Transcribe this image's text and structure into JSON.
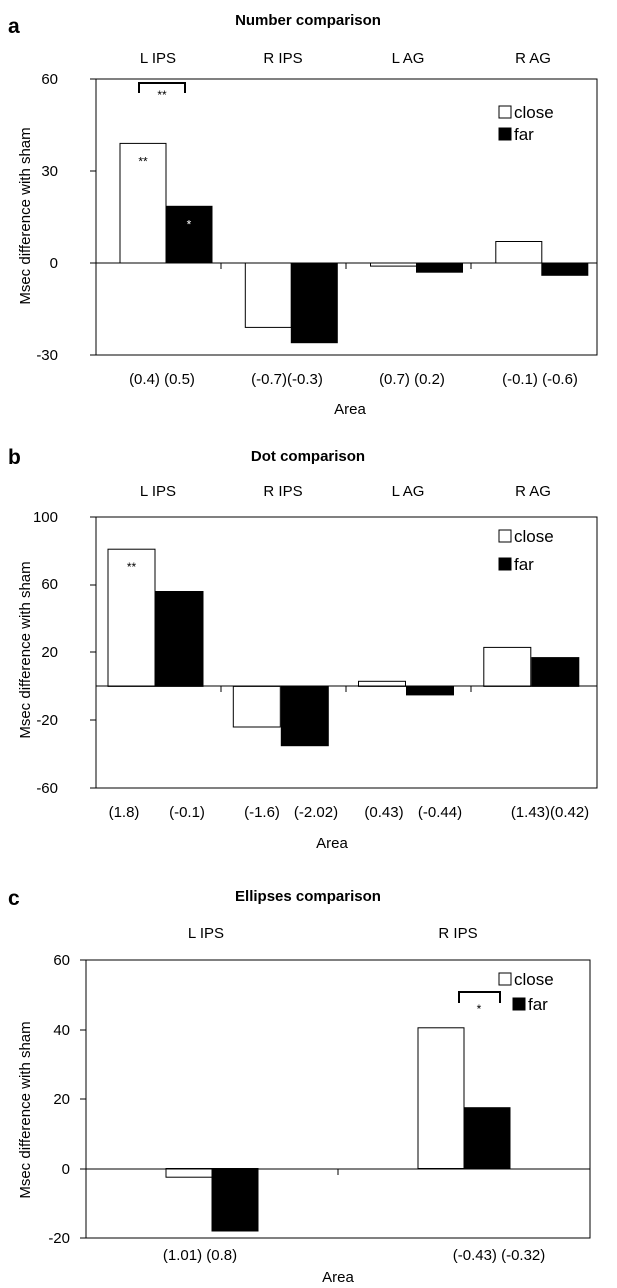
{
  "figure_panels": [
    {
      "letter": "a",
      "title": "Number comparison",
      "ylabel": "Msec difference with sham",
      "xlabel": "Area",
      "yticks": [
        "60",
        "30",
        "0",
        "-30"
      ],
      "legend": [
        "close",
        "far"
      ],
      "annotations": [
        "(0.4) (0.5)",
        "(-0.7)(-0.3)",
        "(0.7)  (0.2)",
        "(-0.1) (-0.6)"
      ],
      "bracket_label": "**"
    },
    {
      "letter": "b",
      "title": "Dot comparison",
      "ylabel": "Msec difference with sham",
      "xlabel": "Area",
      "yticks": [
        "100",
        "60",
        "20",
        "-20",
        "-60"
      ],
      "legend": [
        "close",
        "far"
      ],
      "annotations": [
        "(1.8)",
        "(-0.1)",
        "(-1.6)",
        "(-2.02)",
        "(0.43)",
        "(-0.44)",
        "(1.43)(0.42)"
      ]
    },
    {
      "letter": "c",
      "title": "Ellipses comparison",
      "ylabel": "Msec difference with sham",
      "xlabel": "Area",
      "yticks": [
        "60",
        "40",
        "20",
        "0",
        "-20"
      ],
      "legend": [
        "close",
        "far"
      ],
      "annotations": [
        "(1.01) (0.8)",
        "(-0.43)  (-0.32)"
      ],
      "bracket_label": "*"
    }
  ],
  "chart_data": [
    {
      "type": "bar",
      "title": "Number comparison",
      "xlabel": "Area",
      "ylabel": "Msec difference with sham",
      "categories": [
        "L IPS",
        "R IPS",
        "L AG",
        "R AG"
      ],
      "ylim": [
        -30,
        60
      ],
      "legend_position": "top-right",
      "series": [
        {
          "name": "close",
          "color": "#ffffff",
          "values": [
            39,
            -21,
            -1,
            7
          ]
        },
        {
          "name": "far",
          "color": "#000000",
          "values": [
            18.5,
            -26,
            -3,
            -4
          ]
        }
      ],
      "bar_labels": [
        {
          "series": 0,
          "index": 0,
          "text": "**"
        },
        {
          "series": 1,
          "index": 0,
          "text": "*"
        }
      ]
    },
    {
      "type": "bar",
      "title": "Dot comparison",
      "xlabel": "Area",
      "ylabel": "Msec difference with sham",
      "categories": [
        "L IPS",
        "R IPS",
        "L AG",
        "R AG"
      ],
      "ylim": [
        -60,
        100
      ],
      "legend_position": "top-right",
      "series": [
        {
          "name": "close",
          "color": "#ffffff",
          "values": [
            81,
            -24,
            3,
            23
          ]
        },
        {
          "name": "far",
          "color": "#000000",
          "values": [
            56,
            -35,
            -5,
            17
          ]
        }
      ],
      "bar_labels": [
        {
          "series": 0,
          "index": 0,
          "text": "**"
        }
      ]
    },
    {
      "type": "bar",
      "title": "Ellipses comparison",
      "xlabel": "Area",
      "ylabel": "Msec difference with sham",
      "categories": [
        "L IPS",
        "R IPS"
      ],
      "ylim": [
        -20,
        60
      ],
      "legend_position": "top-right",
      "series": [
        {
          "name": "close",
          "color": "#ffffff",
          "values": [
            -2.5,
            40.5
          ]
        },
        {
          "name": "far",
          "color": "#000000",
          "values": [
            -18,
            17.5
          ]
        }
      ]
    }
  ]
}
